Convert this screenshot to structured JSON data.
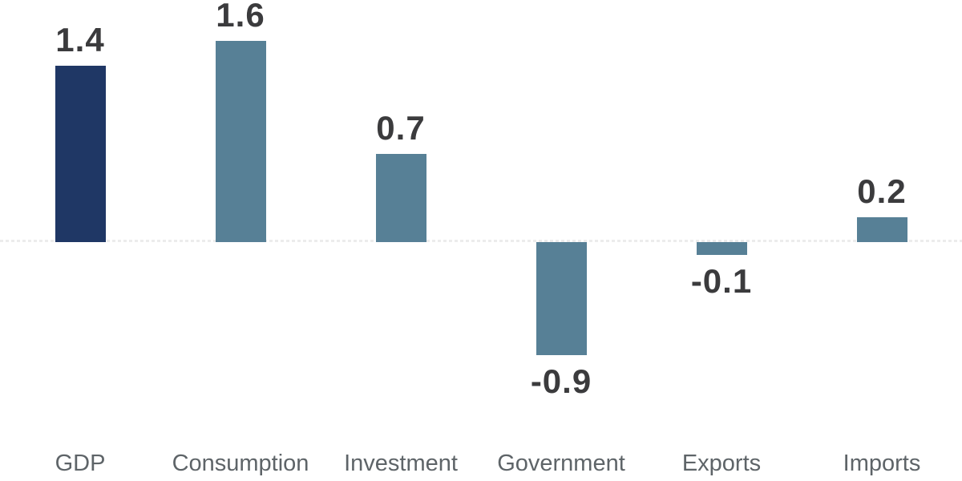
{
  "chart_data": {
    "type": "bar",
    "title": "",
    "xlabel": "",
    "ylabel": "",
    "categories": [
      "GDP",
      "Consumption",
      "Investment",
      "Government",
      "Exports",
      "Imports"
    ],
    "values": [
      1.4,
      1.6,
      0.7,
      -0.9,
      -0.1,
      0.2
    ],
    "data_labels": [
      "1.4",
      "1.6",
      "0.7",
      "-0.9",
      "-0.1",
      "0.2"
    ],
    "bar_colors": [
      "#1F3765",
      "#578096",
      "#578096",
      "#578096",
      "#578096",
      "#578096"
    ],
    "highlight_color": "#1F3765",
    "series_color": "#578096",
    "value_label_color": "#3B3B3D",
    "category_label_color": "#5E6468",
    "zero_line_color": "#ECECEC",
    "zero_line_style": "dashed",
    "background_color": "#FFFFFF",
    "grid": false,
    "legend": false,
    "yaxis_visible": false,
    "ylim": [
      -1.9,
      1.9
    ]
  }
}
